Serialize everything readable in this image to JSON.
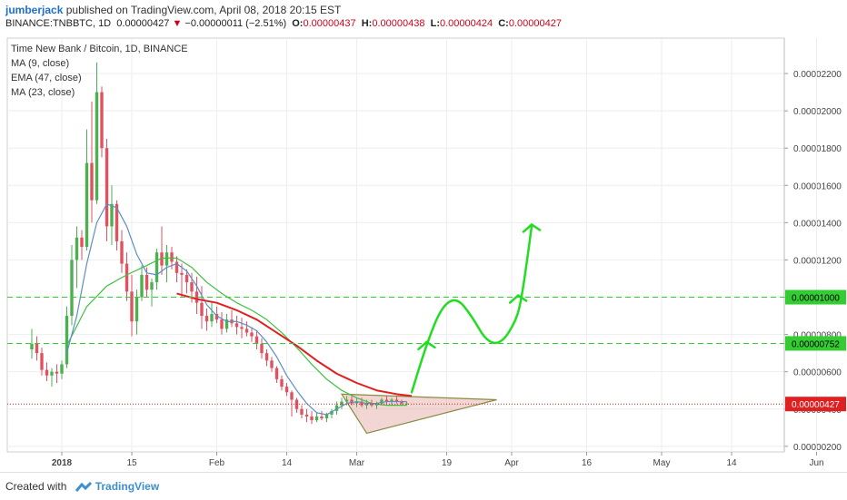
{
  "header": {
    "author": "jumberjack",
    "published": "published on TradingView.com, April 08, 2018 20:15 EST",
    "symbol": "BINANCE:TNBBTC, 1D",
    "last": "0.00000427",
    "change": "−0.00000011 (−2.51%)",
    "o_label": "O:",
    "o_value": "0.00000437",
    "h_label": "H:",
    "h_value": "0.00000438",
    "l_label": "L:",
    "l_value": "0.00000424",
    "c_label": "C:",
    "c_value": "0.00000427"
  },
  "legend": {
    "title": "Time New Bank / Bitcoin, 1D, BINANCE",
    "ma9": "MA (9, close)",
    "ema47": "EMA (47, close)",
    "ma23": "MA (23, close)"
  },
  "footer": {
    "created_with": "Created with",
    "brand": "TradingView"
  },
  "colors": {
    "up": "#4caf50",
    "down": "#e05260",
    "ma9": "#5b8fc4",
    "ema47": "#e02020",
    "ma23": "#40c040",
    "level": "#33cc33",
    "last": "#e02020",
    "arrow": "#22dd22",
    "triangle_fill": "#e8b5b0",
    "triangle_stroke": "#8a8a40"
  },
  "chart_data": {
    "type": "candlestick",
    "ylim": [
      1.7e-06,
      2.39e-05
    ],
    "x_ticks": [
      {
        "day": 0,
        "label": "2018"
      },
      {
        "day": 14,
        "label": "15"
      },
      {
        "day": 31,
        "label": "Feb"
      },
      {
        "day": 45,
        "label": "14"
      },
      {
        "day": 59,
        "label": "Mar"
      },
      {
        "day": 77,
        "label": "19"
      },
      {
        "day": 90,
        "label": "Apr"
      },
      {
        "day": 105,
        "label": "16"
      },
      {
        "day": 120,
        "label": "May"
      },
      {
        "day": 134,
        "label": "14"
      },
      {
        "day": 151,
        "label": "Jun"
      }
    ],
    "y_ticks": [
      "0.00002200",
      "0.00002000",
      "0.00001800",
      "0.00001600",
      "0.00001400",
      "0.00001200",
      "0.00001000",
      "0.00000800",
      "0.00000600",
      "0.00000400",
      "0.00000200"
    ],
    "y_tick_values": [
      2.2e-05,
      2e-05,
      1.8e-05,
      1.6e-05,
      1.4e-05,
      1.2e-05,
      1e-05,
      8e-06,
      6e-06,
      4e-06,
      2e-06
    ],
    "levels": [
      {
        "label": "0.00001000",
        "value": 1e-05
      },
      {
        "label": "0.00000752",
        "value": 7.52e-06
      }
    ],
    "last_price": {
      "label": "0.00000427",
      "value": 4.27e-06
    },
    "candles": [
      [
        -6,
        7.2e-06,
        8.3e-06,
        6.7e-06,
        7.5e-06
      ],
      [
        -5,
        7.5e-06,
        7.9e-06,
        6.6e-06,
        7e-06
      ],
      [
        -4,
        7e-06,
        7.3e-06,
        5.8e-06,
        6.1e-06
      ],
      [
        -3,
        6.1e-06,
        6.5e-06,
        5.5e-06,
        5.8e-06
      ],
      [
        -2,
        5.8e-06,
        6.2e-06,
        5.2e-06,
        6e-06
      ],
      [
        -1,
        6e-06,
        6.4e-06,
        5.4e-06,
        5.9e-06
      ],
      [
        0,
        5.9e-06,
        6.6e-06,
        5.6e-06,
        6.4e-06
      ],
      [
        1,
        6.4e-06,
        9.5e-06,
        6.2e-06,
        9e-06
      ],
      [
        2,
        9e-06,
        1.28e-05,
        8.5e-06,
        1.2e-05
      ],
      [
        3,
        1.2e-05,
        1.38e-05,
        1.05e-05,
        1.32e-05
      ],
      [
        4,
        1.32e-05,
        1.36e-05,
        1.2e-05,
        1.27e-05
      ],
      [
        5,
        1.27e-05,
        1.9e-05,
        1.25e-05,
        1.72e-05
      ],
      [
        6,
        1.72e-05,
        2.05e-05,
        1.4e-05,
        1.52e-05
      ],
      [
        7,
        1.52e-05,
        2.26e-05,
        1.5e-05,
        2.1e-05
      ],
      [
        8,
        2.1e-05,
        2.13e-05,
        1.75e-05,
        1.8e-05
      ],
      [
        9,
        1.8e-05,
        1.85e-05,
        1.3e-05,
        1.38e-05
      ],
      [
        10,
        1.38e-05,
        1.6e-05,
        1.28e-05,
        1.5e-05
      ],
      [
        11,
        1.5e-05,
        1.52e-05,
        1.25e-05,
        1.3e-05
      ],
      [
        12,
        1.3e-05,
        1.36e-05,
        1.13e-05,
        1.18e-05
      ],
      [
        13,
        1.18e-05,
        1.24e-05,
        9.8e-06,
        1.03e-05
      ],
      [
        14,
        1.03e-05,
        1.12e-05,
        7.9e-06,
        8.7e-06
      ],
      [
        15,
        8.7e-06,
        1.04e-05,
        8e-06,
        1e-05
      ],
      [
        16,
        1e-05,
        1.17e-05,
        9.8e-06,
        1.12e-05
      ],
      [
        17,
        1.12e-05,
        1.16e-05,
        1e-05,
        1.04e-05
      ],
      [
        18,
        1.04e-05,
        1.1e-05,
        9.5e-06,
        1.08e-05
      ],
      [
        19,
        1.08e-05,
        1.26e-05,
        1.04e-05,
        1.24e-05
      ],
      [
        20,
        1.24e-05,
        1.38e-05,
        1.12e-05,
        1.17e-05
      ],
      [
        21,
        1.17e-05,
        1.28e-05,
        1.08e-05,
        1.24e-05
      ],
      [
        22,
        1.24e-05,
        1.27e-05,
        1.15e-05,
        1.19e-05
      ],
      [
        23,
        1.19e-05,
        1.22e-05,
        1.08e-05,
        1.13e-05
      ],
      [
        24,
        1.13e-05,
        1.18e-05,
        1e-05,
        1.12e-05
      ],
      [
        25,
        1.12e-05,
        1.15e-05,
        1.02e-05,
        1.08e-05
      ],
      [
        26,
        1.08e-05,
        1.13e-05,
        9.7e-06,
        1.03e-05
      ],
      [
        27,
        1.03e-05,
        1.11e-05,
        9.1e-06,
        9.7e-06
      ],
      [
        28,
        9.7e-06,
        1.06e-05,
        8.3e-06,
        9e-06
      ],
      [
        29,
        9e-06,
        9.4e-06,
        8.2e-06,
        8.7e-06
      ],
      [
        30,
        8.7e-06,
        9.8e-06,
        8.4e-06,
        9.1e-06
      ],
      [
        31,
        9.1e-06,
        9.5e-06,
        8.6e-06,
        8.8e-06
      ],
      [
        32,
        8.8e-06,
        9.2e-06,
        8e-06,
        8.3e-06
      ],
      [
        33,
        8.3e-06,
        9.1e-06,
        8.1e-06,
        8.8e-06
      ],
      [
        34,
        8.8e-06,
        9.3e-06,
        8.4e-06,
        8.6e-06
      ],
      [
        35,
        8.6e-06,
        9e-06,
        8e-06,
        8.4e-06
      ],
      [
        36,
        8.4e-06,
        8.9e-06,
        7.8e-06,
        8.3e-06
      ],
      [
        37,
        8.3e-06,
        8.7e-06,
        7.9e-06,
        8.1e-06
      ],
      [
        38,
        8.1e-06,
        8.4e-06,
        7.6e-06,
        7.9e-06
      ],
      [
        39,
        7.9e-06,
        8.2e-06,
        7.2e-06,
        7.5e-06
      ],
      [
        40,
        7.5e-06,
        7.8e-06,
        6.7e-06,
        7e-06
      ],
      [
        41,
        7e-06,
        7.2e-06,
        6.3e-06,
        6.6e-06
      ],
      [
        42,
        6.6e-06,
        6.8e-06,
        6e-06,
        6.2e-06
      ],
      [
        43,
        6.2e-06,
        6.3e-06,
        5.4e-06,
        5.6e-06
      ],
      [
        44,
        5.6e-06,
        5.8e-06,
        5e-06,
        5.2e-06
      ],
      [
        45,
        5.2e-06,
        5.4e-06,
        4.7e-06,
        4.9e-06
      ],
      [
        46,
        4.9e-06,
        5e-06,
        3.6e-06,
        4.5e-06
      ],
      [
        47,
        4.5e-06,
        4.6e-06,
        3.8e-06,
        4e-06
      ],
      [
        48,
        4e-06,
        4.2e-06,
        3.5e-06,
        3.7e-06
      ],
      [
        49,
        3.7e-06,
        4e-06,
        3.3e-06,
        3.6e-06
      ],
      [
        50,
        3.6e-06,
        3.9e-06,
        3.2e-06,
        3.4e-06
      ],
      [
        51,
        3.4e-06,
        3.8e-06,
        3.3e-06,
        3.6e-06
      ],
      [
        52,
        3.6e-06,
        3.9e-06,
        3.4e-06,
        3.5e-06
      ],
      [
        53,
        3.5e-06,
        3.8e-06,
        3.3e-06,
        3.7e-06
      ],
      [
        54,
        3.7e-06,
        4e-06,
        3.5e-06,
        3.9e-06
      ],
      [
        55,
        3.9e-06,
        4.4e-06,
        3.7e-06,
        4.2e-06
      ],
      [
        56,
        4.2e-06,
        4.6e-06,
        4e-06,
        4.4e-06
      ],
      [
        57,
        4.4e-06,
        4.7e-06,
        4.2e-06,
        4.5e-06
      ],
      [
        58,
        4.5e-06,
        4.7e-06,
        4.2e-06,
        4.3e-06
      ],
      [
        59,
        4.3e-06,
        4.6e-06,
        4.1e-06,
        4.4e-06
      ],
      [
        60,
        4.4e-06,
        4.6e-06,
        4.1e-06,
        4.2e-06
      ],
      [
        61,
        4.2e-06,
        4.5e-06,
        4e-06,
        4.3e-06
      ],
      [
        62,
        4.3e-06,
        4.5e-06,
        4.1e-06,
        4.2e-06
      ],
      [
        63,
        4.2e-06,
        4.4e-06,
        4e-06,
        4.3e-06
      ],
      [
        64,
        4.3e-06,
        4.6e-06,
        4.2e-06,
        4.5e-06
      ],
      [
        65,
        4.5e-06,
        4.7e-06,
        4.3e-06,
        4.4e-06
      ],
      [
        66,
        4.4e-06,
        4.6e-06,
        4.2e-06,
        4.5e-06
      ],
      [
        67,
        4.5e-06,
        4.7e-06,
        4.3e-06,
        4.4e-06
      ],
      [
        68,
        4.4e-06,
        4.5e-06,
        4.2e-06,
        4.3e-06
      ],
      [
        69,
        4.3e-06,
        4.4e-06,
        4.2e-06,
        4.3e-06
      ]
    ],
    "ma9": [
      [
        1,
        7e-06
      ],
      [
        3,
        9e-06
      ],
      [
        5,
        1.18e-05
      ],
      [
        7,
        1.4e-05
      ],
      [
        9,
        1.5e-05
      ],
      [
        11,
        1.48e-05
      ],
      [
        13,
        1.38e-05
      ],
      [
        15,
        1.23e-05
      ],
      [
        17,
        1.13e-05
      ],
      [
        19,
        1.12e-05
      ],
      [
        21,
        1.16e-05
      ],
      [
        23,
        1.18e-05
      ],
      [
        25,
        1.14e-05
      ],
      [
        27,
        1.06e-05
      ],
      [
        29,
        9.6e-06
      ],
      [
        31,
        9e-06
      ],
      [
        33,
        8.7e-06
      ],
      [
        35,
        8.7e-06
      ],
      [
        37,
        8.5e-06
      ],
      [
        39,
        8.2e-06
      ],
      [
        41,
        7.6e-06
      ],
      [
        43,
        6.8e-06
      ],
      [
        45,
        5.8e-06
      ],
      [
        47,
        5e-06
      ],
      [
        49,
        4.3e-06
      ],
      [
        51,
        3.8e-06
      ],
      [
        53,
        3.7e-06
      ],
      [
        55,
        4e-06
      ],
      [
        57,
        4.3e-06
      ],
      [
        59,
        4.4e-06
      ],
      [
        61,
        4.3e-06
      ],
      [
        63,
        4.3e-06
      ],
      [
        65,
        4.4e-06
      ],
      [
        67,
        4.4e-06
      ],
      [
        69,
        4.4e-06
      ]
    ],
    "ma23": [
      [
        1,
        7.4e-06
      ],
      [
        5,
        9.5e-06
      ],
      [
        9,
        1.06e-05
      ],
      [
        13,
        1.12e-05
      ],
      [
        17,
        1.17e-05
      ],
      [
        20,
        1.21e-05
      ],
      [
        23,
        1.21e-05
      ],
      [
        26,
        1.16e-05
      ],
      [
        29,
        1.08e-05
      ],
      [
        32,
        1.02e-05
      ],
      [
        35,
        9.7e-06
      ],
      [
        38,
        9.3e-06
      ],
      [
        41,
        8.8e-06
      ],
      [
        44,
        8.1e-06
      ],
      [
        47,
        7.3e-06
      ],
      [
        50,
        6.4e-06
      ],
      [
        53,
        5.6e-06
      ],
      [
        56,
        5e-06
      ],
      [
        59,
        4.6e-06
      ],
      [
        62,
        4.3e-06
      ],
      [
        65,
        4.2e-06
      ],
      [
        69,
        4.2e-06
      ]
    ],
    "ema47": [
      [
        23,
        1.02e-05
      ],
      [
        27,
        9.9e-06
      ],
      [
        31,
        9.7e-06
      ],
      [
        35,
        9.3e-06
      ],
      [
        39,
        8.8e-06
      ],
      [
        43,
        8.1e-06
      ],
      [
        47,
        7.4e-06
      ],
      [
        51,
        6.6e-06
      ],
      [
        55,
        5.9e-06
      ],
      [
        59,
        5.4e-06
      ],
      [
        63,
        5e-06
      ],
      [
        67,
        4.8e-06
      ],
      [
        70,
        4.7e-06
      ]
    ],
    "triangle": [
      [
        56,
        4.8e-06
      ],
      [
        61,
        2.7e-06
      ],
      [
        87,
        4.5e-06
      ]
    ],
    "arrow_path": [
      [
        70,
        4.9e-06
      ],
      [
        73,
        7.5e-06
      ],
      [
        76,
        9.5e-06
      ],
      [
        79,
        1e-05
      ],
      [
        82,
        9e-06
      ],
      [
        85,
        7.6e-06
      ],
      [
        88,
        7.5e-06
      ],
      [
        91,
        8.8e-06
      ],
      [
        92,
        1e-05
      ],
      [
        93,
        1.18e-05
      ],
      [
        94,
        1.38e-05
      ]
    ]
  }
}
